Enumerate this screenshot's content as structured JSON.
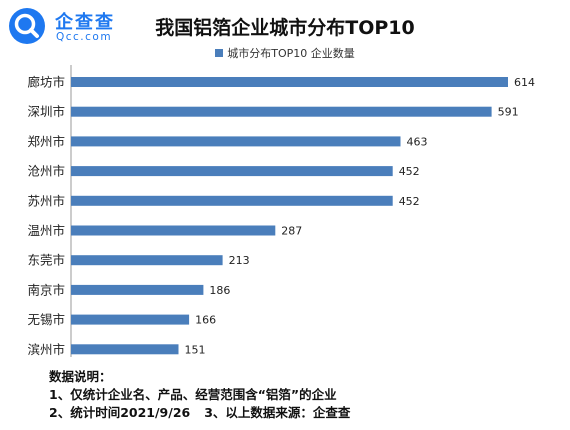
{
  "brand": {
    "name": "企查查",
    "domain": "Qcc.com",
    "icon": "magnifier-logo-icon",
    "color": "#1e78f0"
  },
  "chart_data": {
    "type": "bar",
    "orientation": "horizontal",
    "title": "我国铝箔企业城市分布TOP10",
    "legend": "城市分布TOP10 企业数量",
    "legend_position": "top",
    "categories": [
      "廊坊市",
      "深圳市",
      "郑州市",
      "沧州市",
      "苏州市",
      "温州市",
      "东莞市",
      "南京市",
      "无锡市",
      "滨州市"
    ],
    "series": [
      {
        "name": "城市分布TOP10 企业数量",
        "values": [
          614,
          591,
          463,
          452,
          452,
          287,
          213,
          186,
          166,
          151
        ]
      }
    ],
    "xlim": [
      0,
      614
    ],
    "grid": false,
    "bar_color": "#4a7ebb"
  },
  "notes": {
    "heading": "数据说明：",
    "line1": "1、仅统计企业名、产品、经营范围含“铝箔”的企业",
    "line2a": "2、统计时间2021/9/26",
    "line2b": "3、以上数据来源：企查查"
  }
}
